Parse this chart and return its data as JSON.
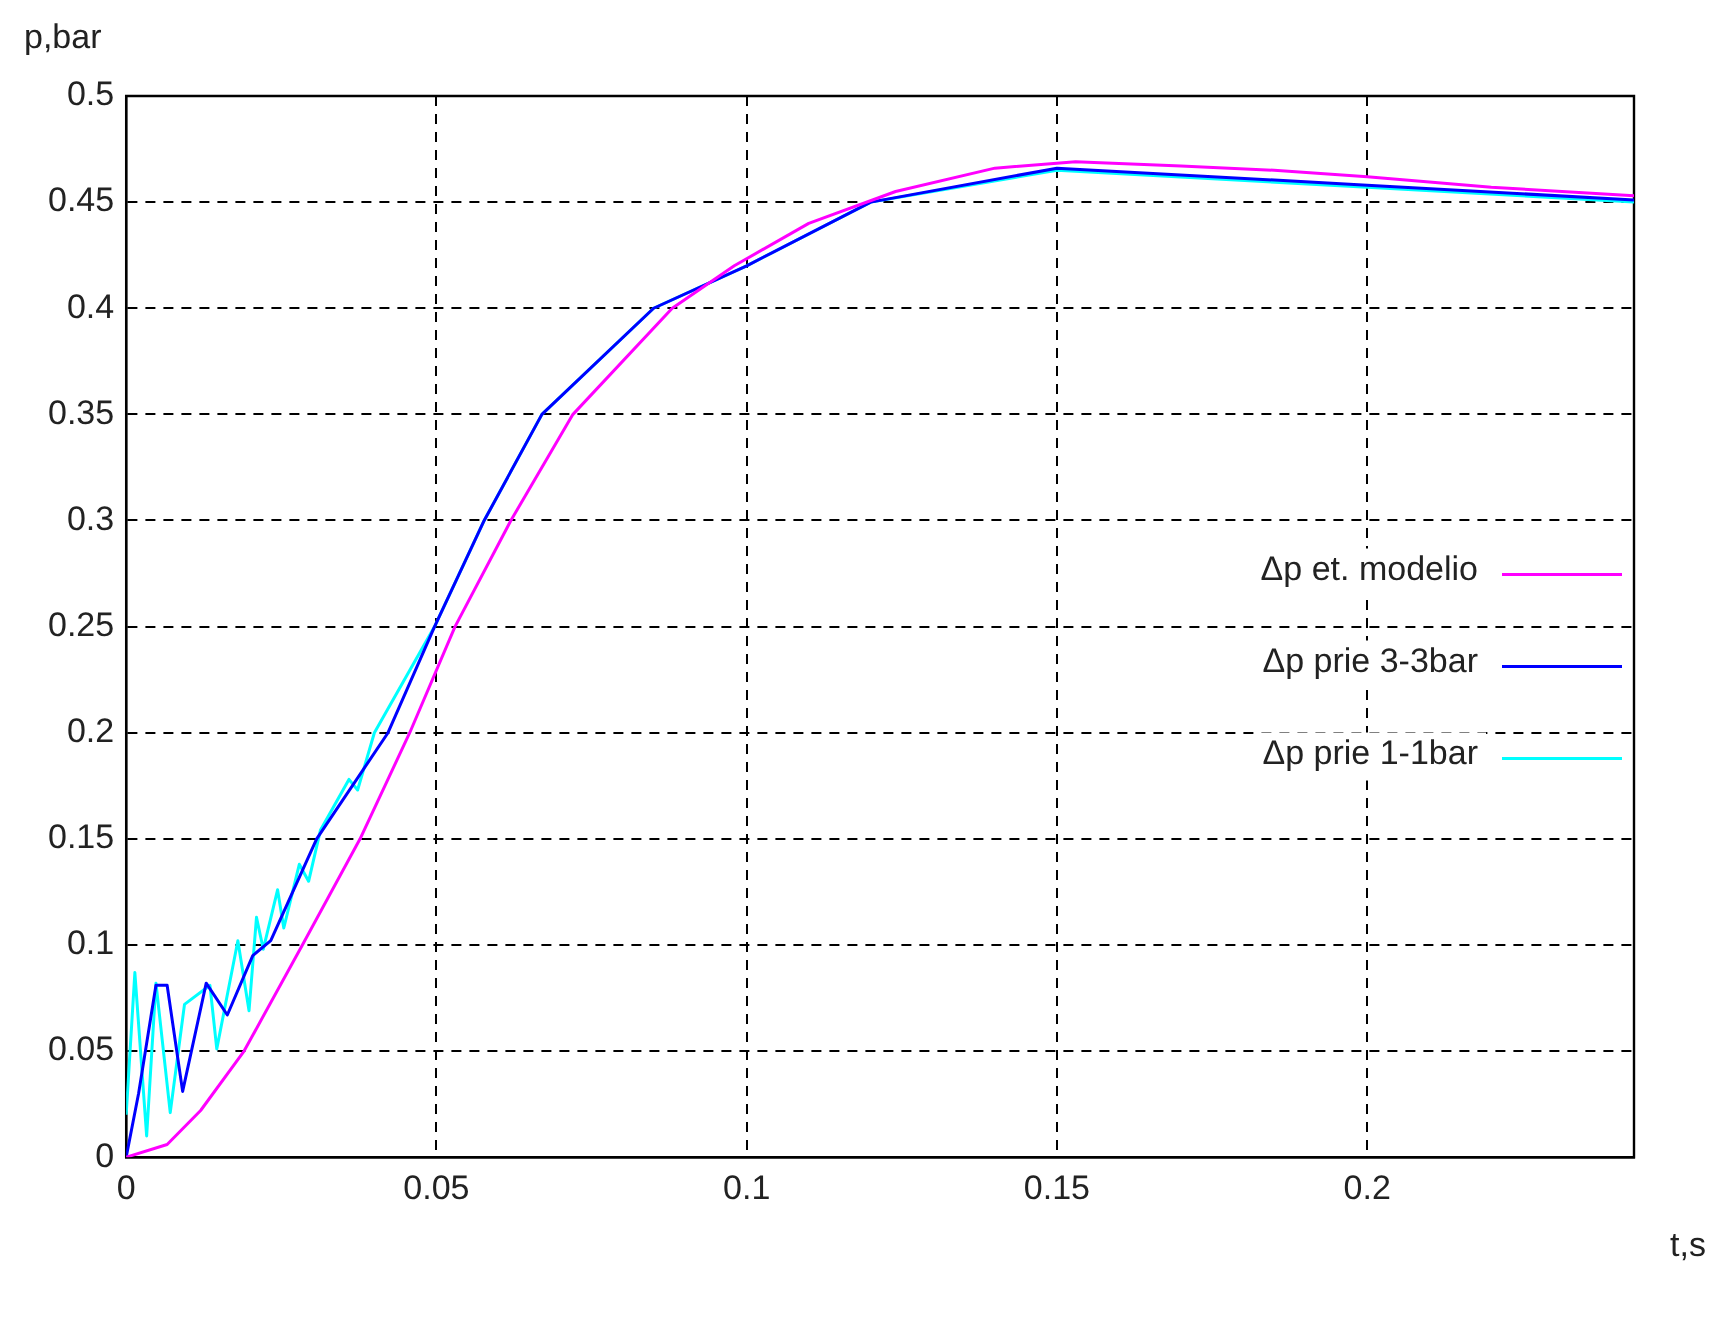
{
  "chart_data": {
    "type": "line",
    "xlabel": "t,s",
    "ylabel": "p,bar",
    "xlim": [
      0,
      0.243
    ],
    "ylim": [
      0,
      0.5
    ],
    "xticks": [
      0,
      0.05,
      0.1,
      0.15,
      0.2
    ],
    "yticks": [
      0,
      0.05,
      0.1,
      0.15,
      0.2,
      0.25,
      0.3,
      0.35,
      0.4,
      0.45,
      0.5
    ],
    "grid": true,
    "legend": "right",
    "line_style": "solid",
    "series": [
      {
        "name": "Δp et. modelio",
        "color": "#ff00ff",
        "x": [
          0,
          0.0066,
          0.012,
          0.019,
          0.0284,
          0.0377,
          0.0457,
          0.053,
          0.062,
          0.072,
          0.088,
          0.098,
          0.11,
          0.124,
          0.14,
          0.153,
          0.17,
          0.185,
          0.2,
          0.22,
          0.243
        ],
        "values": [
          0,
          0.006,
          0.022,
          0.05,
          0.1,
          0.15,
          0.2,
          0.25,
          0.3,
          0.35,
          0.4,
          0.42,
          0.44,
          0.455,
          0.466,
          0.469,
          0.467,
          0.465,
          0.462,
          0.457,
          0.453
        ]
      },
      {
        "name": "Δp prie 3-3bar",
        "color": "#0000ff",
        "x": [
          0,
          0.002,
          0.0048,
          0.0066,
          0.0091,
          0.0129,
          0.0163,
          0.0204,
          0.0233,
          0.0307,
          0.0422,
          0.0497,
          0.0577,
          0.067,
          0.085,
          0.1,
          0.12,
          0.15,
          0.2,
          0.243
        ],
        "values": [
          0,
          0.03,
          0.081,
          0.081,
          0.031,
          0.082,
          0.067,
          0.095,
          0.102,
          0.15,
          0.2,
          0.25,
          0.3,
          0.35,
          0.4,
          0.42,
          0.45,
          0.466,
          0.458,
          0.451
        ]
      },
      {
        "name": "Δp prie 1-1bar",
        "color": "#00ffff",
        "x": [
          0,
          0.0014,
          0.0033,
          0.0048,
          0.0071,
          0.0094,
          0.0135,
          0.0146,
          0.018,
          0.0198,
          0.021,
          0.0221,
          0.0244,
          0.0254,
          0.0279,
          0.0294,
          0.0313,
          0.0359,
          0.0373,
          0.04,
          0.0497,
          0.0577,
          0.067,
          0.085,
          0.1,
          0.12,
          0.15,
          0.2,
          0.243
        ],
        "values": [
          0.02,
          0.087,
          0.01,
          0.082,
          0.021,
          0.072,
          0.081,
          0.051,
          0.102,
          0.069,
          0.113,
          0.098,
          0.126,
          0.108,
          0.138,
          0.13,
          0.154,
          0.178,
          0.173,
          0.2,
          0.25,
          0.3,
          0.35,
          0.4,
          0.42,
          0.45,
          0.465,
          0.457,
          0.45
        ]
      }
    ]
  }
}
